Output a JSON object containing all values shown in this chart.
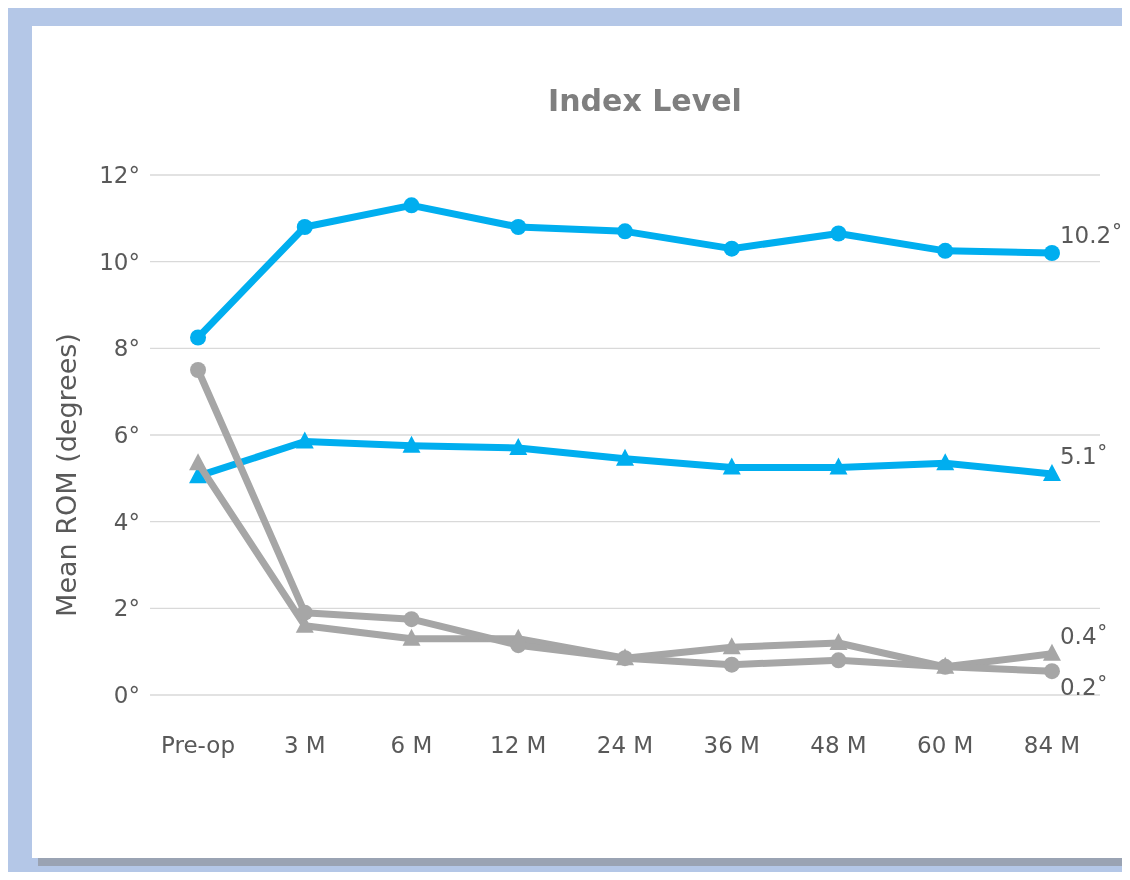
{
  "chart_data": {
    "type": "line",
    "title": "Index Level",
    "ylabel": "Mean ROM (degrees)",
    "categories": [
      "Pre-op",
      "3 M",
      "6 M",
      "12 M",
      "24 M",
      "36 M",
      "48 M",
      "60 M",
      "84 M"
    ],
    "series": [
      {
        "color": "#00aeef",
        "marker": "circle",
        "values": [
          8.25,
          10.8,
          11.3,
          10.8,
          10.7,
          10.3,
          10.65,
          10.25,
          10.2
        ]
      },
      {
        "color": "#00aeef",
        "marker": "triangle",
        "values": [
          5.05,
          5.85,
          5.75,
          5.7,
          5.45,
          5.25,
          5.25,
          5.35,
          5.1
        ]
      },
      {
        "color": "#a6a6a6",
        "marker": "triangle",
        "values": [
          5.35,
          1.6,
          1.3,
          1.3,
          0.85,
          1.1,
          1.2,
          0.65,
          0.95
        ]
      },
      {
        "color": "#a6a6a6",
        "marker": "circle",
        "values": [
          7.5,
          1.9,
          1.75,
          1.15,
          0.85,
          0.7,
          0.8,
          0.65,
          0.55
        ]
      }
    ],
    "ylim": [
      0,
      12
    ],
    "yticks": [
      {
        "value": 0,
        "label": "0°"
      },
      {
        "value": 2,
        "label": "2°"
      },
      {
        "value": 4,
        "label": "4°"
      },
      {
        "value": 6,
        "label": "6°"
      },
      {
        "value": 8,
        "label": "8°"
      },
      {
        "value": 10,
        "label": "10°"
      },
      {
        "value": 12,
        "label": "12°"
      }
    ],
    "grid": "y",
    "annotations": [
      "10.2˚",
      "5.1˚",
      "0.4˚",
      "0.2˚"
    ]
  }
}
